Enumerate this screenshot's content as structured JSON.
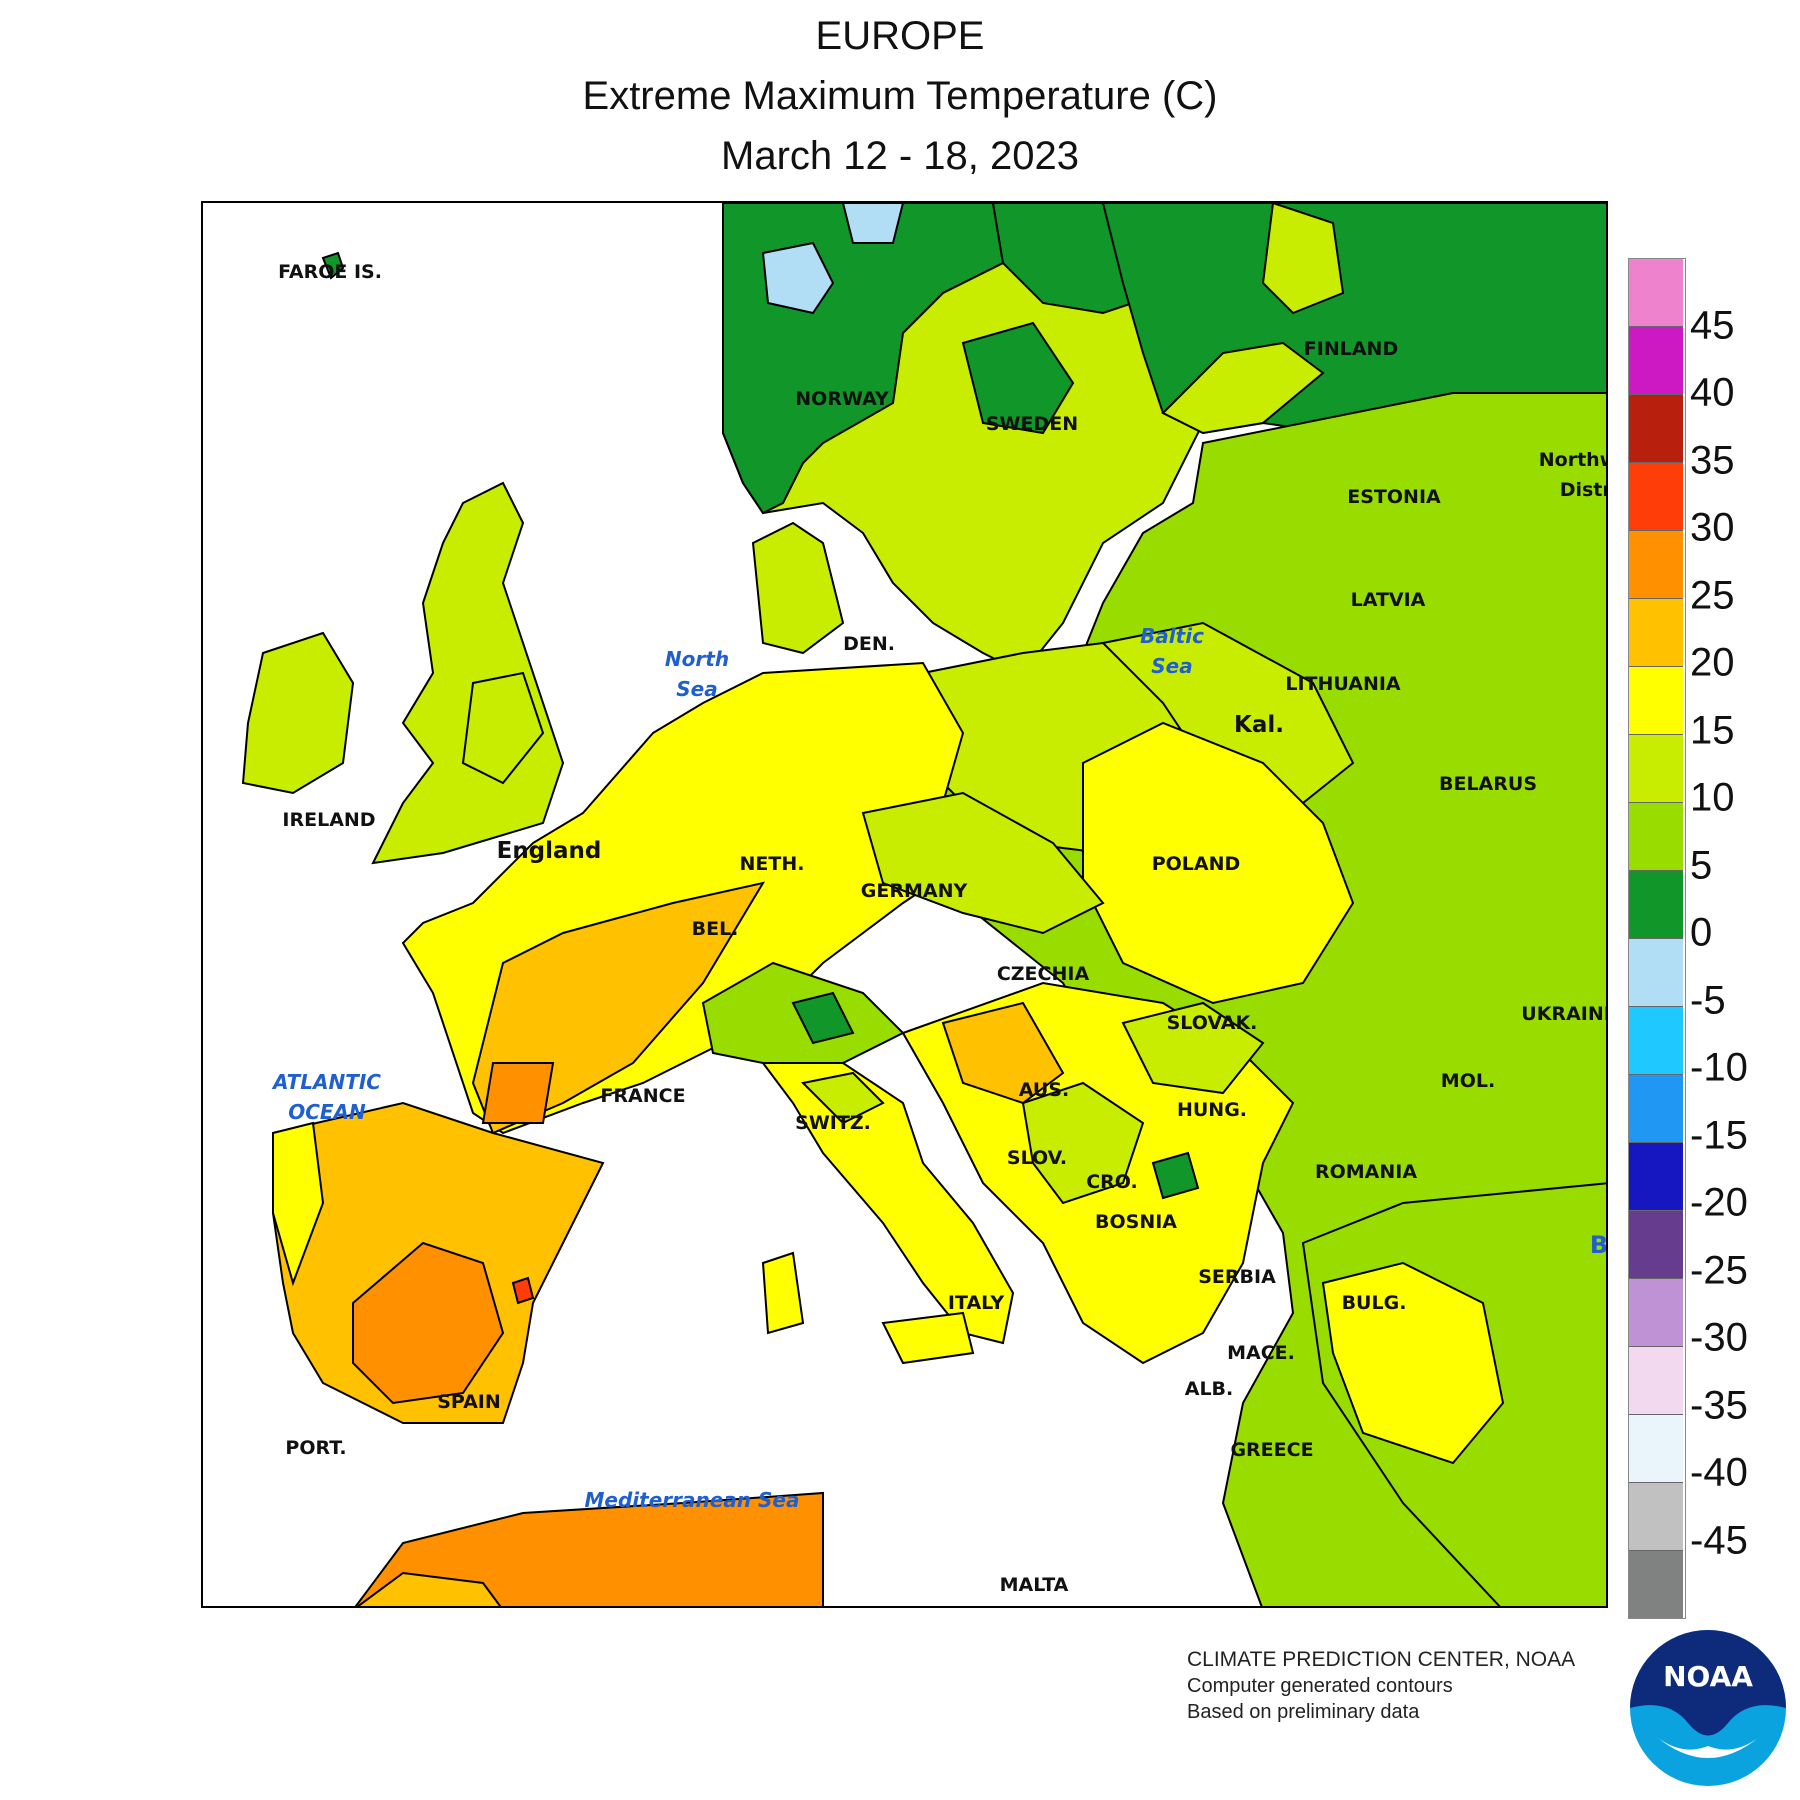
{
  "title": {
    "region": "EUROPE",
    "variable": "Extreme Maximum Temperature (C)",
    "period": "March 12 - 18, 2023"
  },
  "legend": {
    "ticks": [
      "45",
      "40",
      "35",
      "30",
      "25",
      "20",
      "15",
      "10",
      "5",
      "0",
      "-5",
      "-10",
      "-15",
      "-20",
      "-25",
      "-30",
      "-35",
      "-40",
      "-45"
    ],
    "colors": [
      "#ee82cc",
      "#cc19c4",
      "#b81f0c",
      "#ff3d08",
      "#ff9100",
      "#ffc100",
      "#ffff00",
      "#c8ed00",
      "#99dd00",
      "#109629",
      "#b1def5",
      "#1fc9ff",
      "#2097f2",
      "#1717c2",
      "#663d8e",
      "#bf92d6",
      "#f2d9f0",
      "#eaf5fb",
      "#c1c1c1",
      "#808282"
    ]
  },
  "map_labels": {
    "countries": [
      "FAROE IS.",
      "NORWAY",
      "SWEDEN",
      "FINLAND",
      "ESTONIA",
      "LATVIA",
      "LITHUANIA",
      "Kal.",
      "BELARUS",
      "IRELAND",
      "England",
      "DEN.",
      "NETH.",
      "BEL.",
      "GERMANY",
      "POLAND",
      "CZECHIA",
      "SLOVAK.",
      "UKRAINE",
      "MOL.",
      "FRANCE",
      "SWITZ.",
      "AUS.",
      "HUNG.",
      "SLOV.",
      "CRO.",
      "BOSNIA",
      "ROMANIA",
      "SERBIA",
      "BULG.",
      "ITALY",
      "MACE.",
      "ALB.",
      "GREECE",
      "SPAIN",
      "PORT.",
      "MALTA",
      "Northw",
      "Distri",
      "B"
    ],
    "seas": {
      "north_sea_1": "North",
      "north_sea_2": "Sea",
      "baltic_1": "Baltic",
      "baltic_2": "Sea",
      "atlantic_1": "ATLANTIC",
      "atlantic_2": "OCEAN",
      "mediterranean": "Mediterranean Sea"
    }
  },
  "credits": {
    "line1": "CLIMATE PREDICTION CENTER, NOAA",
    "line2": "Computer generated contours",
    "line3": "Based on preliminary data"
  },
  "logo_text": "NOAA"
}
